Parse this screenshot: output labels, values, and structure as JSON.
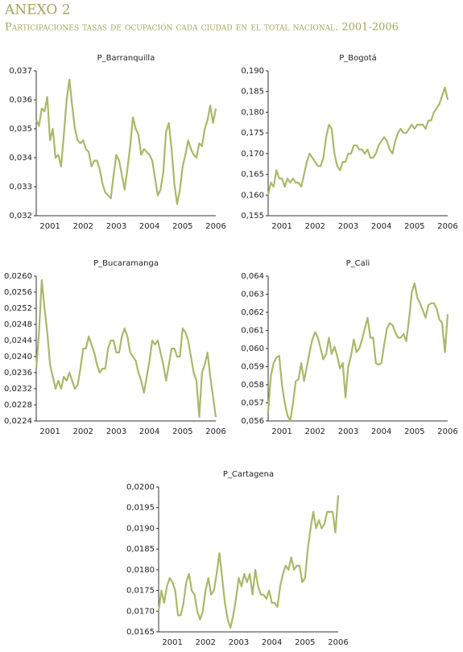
{
  "header": {
    "title": "ANEXO 2",
    "subtitle": "Participaciones tasas de ocupación cada ciudad en el total nacional. 2001-2006"
  },
  "chart_data": [
    {
      "type": "line",
      "title": "P_Barranquilla",
      "color": "#aab86b",
      "categories": [
        null,
        null,
        null,
        null,
        null,
        "2001",
        null,
        null,
        null,
        null,
        null,
        null,
        null,
        null,
        null,
        null,
        null,
        "2002",
        null,
        null,
        null,
        null,
        null,
        null,
        null,
        null,
        null,
        null,
        null,
        "2003",
        null,
        null,
        null,
        null,
        null,
        null,
        null,
        null,
        null,
        null,
        null,
        "2004",
        null,
        null,
        null,
        null,
        null,
        null,
        null,
        null,
        null,
        null,
        null,
        "2005",
        null,
        null,
        null,
        null,
        null,
        null,
        null,
        null,
        null,
        null,
        null,
        "2006"
      ],
      "values": [
        0.0353,
        0.0351,
        0.0357,
        0.0356,
        0.0361,
        0.0346,
        0.035,
        0.034,
        0.0341,
        0.0337,
        0.0348,
        0.036,
        0.0367,
        0.0358,
        0.035,
        0.0346,
        0.0345,
        0.0346,
        0.0343,
        0.0342,
        0.0337,
        0.0339,
        0.0339,
        0.0336,
        0.0331,
        0.0328,
        0.0327,
        0.0326,
        0.0334,
        0.0341,
        0.0339,
        0.0334,
        0.0329,
        0.0336,
        0.0344,
        0.0354,
        0.035,
        0.0348,
        0.0341,
        0.0343,
        0.0342,
        0.0341,
        0.0339,
        0.0333,
        0.0327,
        0.0329,
        0.0335,
        0.0349,
        0.0352,
        0.0343,
        0.0331,
        0.0324,
        0.0329,
        0.0337,
        0.0341,
        0.0346,
        0.0343,
        0.0341,
        0.034,
        0.0345,
        0.0344,
        0.035,
        0.0353,
        0.0358,
        0.0352,
        0.0357
      ],
      "ylim": [
        0.032,
        0.037
      ],
      "yticks": [
        {
          "value": 0.032,
          "label": "0,032"
        },
        {
          "value": 0.033,
          "label": "0,033"
        },
        {
          "value": 0.034,
          "label": "0,034"
        },
        {
          "value": 0.035,
          "label": "0,035"
        },
        {
          "value": 0.036,
          "label": "0,036"
        },
        {
          "value": 0.037,
          "label": "0,037"
        }
      ]
    },
    {
      "type": "line",
      "title": "P_Bogotá",
      "color": "#aab86b",
      "categories": [
        null,
        null,
        null,
        null,
        null,
        "2001",
        null,
        null,
        null,
        null,
        null,
        null,
        null,
        null,
        null,
        null,
        null,
        "2002",
        null,
        null,
        null,
        null,
        null,
        null,
        null,
        null,
        null,
        null,
        null,
        "2003",
        null,
        null,
        null,
        null,
        null,
        null,
        null,
        null,
        null,
        null,
        null,
        "2004",
        null,
        null,
        null,
        null,
        null,
        null,
        null,
        null,
        null,
        null,
        null,
        "2005",
        null,
        null,
        null,
        null,
        null,
        null,
        null,
        null,
        null,
        null,
        null,
        "2006"
      ],
      "values": [
        0.16,
        0.163,
        0.162,
        0.166,
        0.164,
        0.164,
        0.162,
        0.164,
        0.163,
        0.164,
        0.163,
        0.163,
        0.162,
        0.165,
        0.168,
        0.17,
        0.169,
        0.168,
        0.167,
        0.167,
        0.169,
        0.174,
        0.177,
        0.176,
        0.17,
        0.167,
        0.166,
        0.168,
        0.168,
        0.17,
        0.17,
        0.172,
        0.172,
        0.171,
        0.171,
        0.17,
        0.171,
        0.169,
        0.169,
        0.17,
        0.172,
        0.173,
        0.174,
        0.173,
        0.171,
        0.17,
        0.173,
        0.175,
        0.176,
        0.175,
        0.175,
        0.176,
        0.177,
        0.176,
        0.177,
        0.177,
        0.177,
        0.176,
        0.178,
        0.178,
        0.18,
        0.181,
        0.182,
        0.184,
        0.186,
        0.183
      ],
      "ylim": [
        0.155,
        0.19
      ],
      "yticks": [
        {
          "value": 0.155,
          "label": "0,155"
        },
        {
          "value": 0.16,
          "label": "0,160"
        },
        {
          "value": 0.165,
          "label": "0,165"
        },
        {
          "value": 0.17,
          "label": "0,170"
        },
        {
          "value": 0.175,
          "label": "0,175"
        },
        {
          "value": 0.18,
          "label": "0,180"
        },
        {
          "value": 0.185,
          "label": "0,185"
        },
        {
          "value": 0.19,
          "label": "0,190"
        }
      ]
    },
    {
      "type": "line",
      "title": "P_Bucaramanga",
      "color": "#aab86b",
      "categories": [
        null,
        null,
        null,
        null,
        null,
        "2001",
        null,
        null,
        null,
        null,
        null,
        null,
        null,
        null,
        null,
        null,
        null,
        "2002",
        null,
        null,
        null,
        null,
        null,
        null,
        null,
        null,
        null,
        null,
        null,
        "2003",
        null,
        null,
        null,
        null,
        null,
        null,
        null,
        null,
        null,
        null,
        null,
        "2004",
        null,
        null,
        null,
        null,
        null,
        null,
        null,
        null,
        null,
        null,
        null,
        "2005",
        null,
        null,
        null,
        null,
        null,
        null,
        null,
        null,
        null,
        null,
        null,
        "2006"
      ],
      "values": [
        0.0237,
        0.0246,
        0.0259,
        0.0252,
        0.0246,
        0.0238,
        0.0235,
        0.0232,
        0.0234,
        0.0232,
        0.0235,
        0.0234,
        0.0236,
        0.0234,
        0.0232,
        0.0233,
        0.0237,
        0.0242,
        0.0242,
        0.0245,
        0.0243,
        0.0241,
        0.0238,
        0.0236,
        0.0237,
        0.0237,
        0.0242,
        0.0244,
        0.0244,
        0.0241,
        0.0241,
        0.0245,
        0.0247,
        0.0245,
        0.0241,
        0.024,
        0.0239,
        0.0236,
        0.0234,
        0.0231,
        0.0235,
        0.0239,
        0.0244,
        0.0243,
        0.0244,
        0.0241,
        0.0238,
        0.0234,
        0.0238,
        0.0242,
        0.0242,
        0.024,
        0.024,
        0.0247,
        0.0246,
        0.0244,
        0.024,
        0.0236,
        0.0234,
        0.0225,
        0.0236,
        0.0238,
        0.0241,
        0.0235,
        0.023,
        0.0225
      ],
      "ylim": [
        0.0224,
        0.026
      ],
      "yticks": [
        {
          "value": 0.0224,
          "label": "0,0224"
        },
        {
          "value": 0.0228,
          "label": "0,0228"
        },
        {
          "value": 0.0232,
          "label": "0,0232"
        },
        {
          "value": 0.0236,
          "label": "0,0236"
        },
        {
          "value": 0.024,
          "label": "0,0240"
        },
        {
          "value": 0.0244,
          "label": "0,0244"
        },
        {
          "value": 0.0248,
          "label": "0,0248"
        },
        {
          "value": 0.0252,
          "label": "0,0252"
        },
        {
          "value": 0.0256,
          "label": "0,0256"
        },
        {
          "value": 0.026,
          "label": "0,0260"
        }
      ]
    },
    {
      "type": "line",
      "title": "P_Cali",
      "color": "#aab86b",
      "categories": [
        null,
        null,
        null,
        null,
        null,
        "2001",
        null,
        null,
        null,
        null,
        null,
        null,
        null,
        null,
        null,
        null,
        null,
        "2002",
        null,
        null,
        null,
        null,
        null,
        null,
        null,
        null,
        null,
        null,
        null,
        "2003",
        null,
        null,
        null,
        null,
        null,
        null,
        null,
        null,
        null,
        null,
        null,
        "2004",
        null,
        null,
        null,
        null,
        null,
        null,
        null,
        null,
        null,
        null,
        null,
        "2005",
        null,
        null,
        null,
        null,
        null,
        null,
        null,
        null,
        null,
        null,
        null,
        "2006"
      ],
      "values": [
        0.0565,
        0.0585,
        0.0592,
        0.0595,
        0.0596,
        0.058,
        0.057,
        0.0563,
        0.056,
        0.057,
        0.0582,
        0.0583,
        0.0592,
        0.0582,
        0.059,
        0.0598,
        0.0605,
        0.0609,
        0.0606,
        0.06,
        0.0594,
        0.0597,
        0.0606,
        0.0597,
        0.0601,
        0.0596,
        0.0589,
        0.0592,
        0.0573,
        0.059,
        0.0596,
        0.0605,
        0.0598,
        0.06,
        0.0605,
        0.0611,
        0.0617,
        0.0606,
        0.0606,
        0.0592,
        0.0591,
        0.0592,
        0.0602,
        0.0611,
        0.0614,
        0.0613,
        0.0609,
        0.0606,
        0.0606,
        0.0608,
        0.0604,
        0.0616,
        0.0631,
        0.0636,
        0.0628,
        0.0625,
        0.0621,
        0.0617,
        0.0624,
        0.0625,
        0.0625,
        0.0622,
        0.0616,
        0.0614,
        0.0598,
        0.0619
      ],
      "ylim": [
        0.056,
        0.064
      ],
      "yticks": [
        {
          "value": 0.056,
          "label": "0,056"
        },
        {
          "value": 0.057,
          "label": "0,057"
        },
        {
          "value": 0.058,
          "label": "0,058"
        },
        {
          "value": 0.059,
          "label": "0,059"
        },
        {
          "value": 0.06,
          "label": "0,060"
        },
        {
          "value": 0.061,
          "label": "0,061"
        },
        {
          "value": 0.062,
          "label": "0,062"
        },
        {
          "value": 0.063,
          "label": "0,063"
        },
        {
          "value": 0.064,
          "label": "0,064"
        }
      ]
    },
    {
      "type": "line",
      "title": "P_Cartagena",
      "color": "#aab86b",
      "categories": [
        null,
        null,
        null,
        null,
        null,
        "2001",
        null,
        null,
        null,
        null,
        null,
        null,
        null,
        null,
        null,
        null,
        null,
        "2002",
        null,
        null,
        null,
        null,
        null,
        null,
        null,
        null,
        null,
        null,
        null,
        "2003",
        null,
        null,
        null,
        null,
        null,
        null,
        null,
        null,
        null,
        null,
        null,
        "2004",
        null,
        null,
        null,
        null,
        null,
        null,
        null,
        null,
        null,
        null,
        null,
        "2005",
        null,
        null,
        null,
        null,
        null,
        null,
        null,
        null,
        null,
        null,
        null,
        "2006"
      ],
      "values": [
        0.017,
        0.0175,
        0.0172,
        0.0176,
        0.0178,
        0.0177,
        0.0175,
        0.0169,
        0.0169,
        0.0172,
        0.0177,
        0.0179,
        0.0175,
        0.0174,
        0.017,
        0.0168,
        0.017,
        0.0175,
        0.0178,
        0.0174,
        0.0175,
        0.0179,
        0.0184,
        0.0178,
        0.0172,
        0.0168,
        0.0166,
        0.0169,
        0.0173,
        0.0178,
        0.0176,
        0.0179,
        0.0177,
        0.0179,
        0.0174,
        0.018,
        0.0176,
        0.0174,
        0.0174,
        0.0173,
        0.0175,
        0.0172,
        0.0172,
        0.0171,
        0.0176,
        0.0179,
        0.0181,
        0.018,
        0.0183,
        0.018,
        0.0181,
        0.0181,
        0.0177,
        0.0178,
        0.0185,
        0.019,
        0.0194,
        0.019,
        0.0192,
        0.019,
        0.0191,
        0.0194,
        0.0194,
        0.0194,
        0.0189,
        0.0198
      ],
      "ylim": [
        0.0165,
        0.02
      ],
      "yticks": [
        {
          "value": 0.0165,
          "label": "0,0165"
        },
        {
          "value": 0.017,
          "label": "0,0170"
        },
        {
          "value": 0.0175,
          "label": "0,0175"
        },
        {
          "value": 0.018,
          "label": "0,0180"
        },
        {
          "value": 0.0185,
          "label": "0,0185"
        },
        {
          "value": 0.019,
          "label": "0,0190"
        },
        {
          "value": 0.0195,
          "label": "0,0195"
        },
        {
          "value": 0.02,
          "label": "0,0200"
        }
      ]
    }
  ]
}
